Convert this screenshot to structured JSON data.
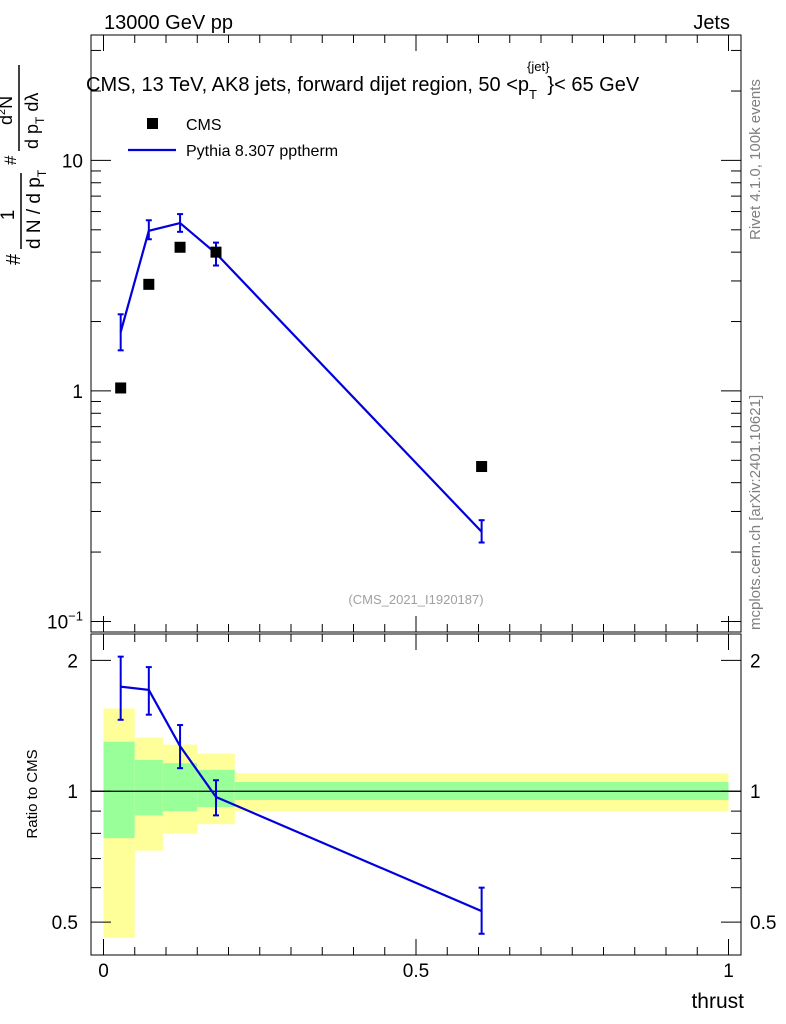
{
  "header": {
    "left": "13000 GeV pp",
    "right": "Jets"
  },
  "side_labels": {
    "rivet": "Rivet 4.1.0,  100k events",
    "site": "mcplots.cern.ch [arXiv:2401.10621]"
  },
  "watermark": "(CMS_2021_I1920187)",
  "colors": {
    "mc": "#0000dd",
    "data": "#000000",
    "band_inner": "#99ff99",
    "band_outer": "#ffff99"
  },
  "chart_data": [
    {
      "type": "scatter",
      "title_parts": {
        "main": "CMS, 13 TeV, AK8 jets, forward dijet region, 50 <p",
        "sub": "T",
        "sup": "{jet}",
        "tail": "}< 65 GeV"
      },
      "ylabel": {
        "hash1": "#",
        "one": "1",
        "frac1_den": "d N / d p",
        "frac1_den_sub": "T",
        "hash2": "#",
        "num2": "d",
        "num2_sup": "2",
        "num2_tail": "N",
        "den2": "d p",
        "den2_sub": "T",
        "den2_tail": " dλ"
      },
      "yscale": "log",
      "ylim": [
        0.09,
        35
      ],
      "xlim": [
        -0.02,
        1.02
      ],
      "ytick_labels": [
        {
          "v": 0.1,
          "base": "10",
          "exp": "−1"
        },
        {
          "v": 1,
          "base": "1",
          "exp": ""
        },
        {
          "v": 10,
          "base": "10",
          "exp": ""
        }
      ],
      "legend": {
        "position": "top-left",
        "data_label": "CMS",
        "mc_label": "Pythia 8.307 pptherm"
      },
      "series": [
        {
          "name": "CMS",
          "x": [
            0.0275,
            0.0725,
            0.1225,
            0.18,
            0.605
          ],
          "y": [
            1.03,
            2.9,
            4.2,
            4.0,
            0.47
          ]
        },
        {
          "name": "Pythia 8.307 pptherm",
          "x": [
            0.0275,
            0.0725,
            0.1225,
            0.18,
            0.605
          ],
          "y": [
            1.8,
            4.95,
            5.35,
            3.95,
            0.245
          ],
          "err_lo": [
            0.3,
            0.4,
            0.45,
            0.45,
            0.025
          ],
          "err_hi": [
            0.35,
            0.55,
            0.5,
            0.45,
            0.03
          ]
        }
      ]
    },
    {
      "type": "line",
      "ylabel": "Ratio to CMS",
      "xlabel": "thrust",
      "ylim": [
        0.42,
        2.3
      ],
      "xlim": [
        -0.02,
        1.02
      ],
      "yticks": [
        0.5,
        1,
        2
      ],
      "ytick_labels": [
        "0.5",
        "1",
        "2"
      ],
      "xticks": [
        0,
        0.5,
        1
      ],
      "xtick_labels": [
        "0",
        "0.5",
        "1"
      ],
      "bands": [
        {
          "x0": 0.0,
          "x1": 0.05,
          "inner": [
            0.78,
            1.3
          ],
          "outer": [
            0.46,
            1.55
          ]
        },
        {
          "x0": 0.05,
          "x1": 0.095,
          "inner": [
            0.88,
            1.18
          ],
          "outer": [
            0.73,
            1.33
          ]
        },
        {
          "x0": 0.095,
          "x1": 0.15,
          "inner": [
            0.9,
            1.16
          ],
          "outer": [
            0.8,
            1.28
          ]
        },
        {
          "x0": 0.15,
          "x1": 0.21,
          "inner": [
            0.92,
            1.12
          ],
          "outer": [
            0.84,
            1.22
          ]
        },
        {
          "x0": 0.21,
          "x1": 1.0,
          "inner": [
            0.955,
            1.05
          ],
          "outer": [
            0.9,
            1.1
          ]
        }
      ],
      "series": [
        {
          "name": "Pythia 8.307 pptherm",
          "x": [
            0.0275,
            0.0725,
            0.1225,
            0.18,
            0.605
          ],
          "y": [
            1.74,
            1.71,
            1.27,
            0.97,
            0.53
          ],
          "err_lo": [
            0.28,
            0.21,
            0.14,
            0.09,
            0.06
          ],
          "err_hi": [
            0.3,
            0.22,
            0.15,
            0.09,
            0.07
          ]
        }
      ]
    }
  ]
}
